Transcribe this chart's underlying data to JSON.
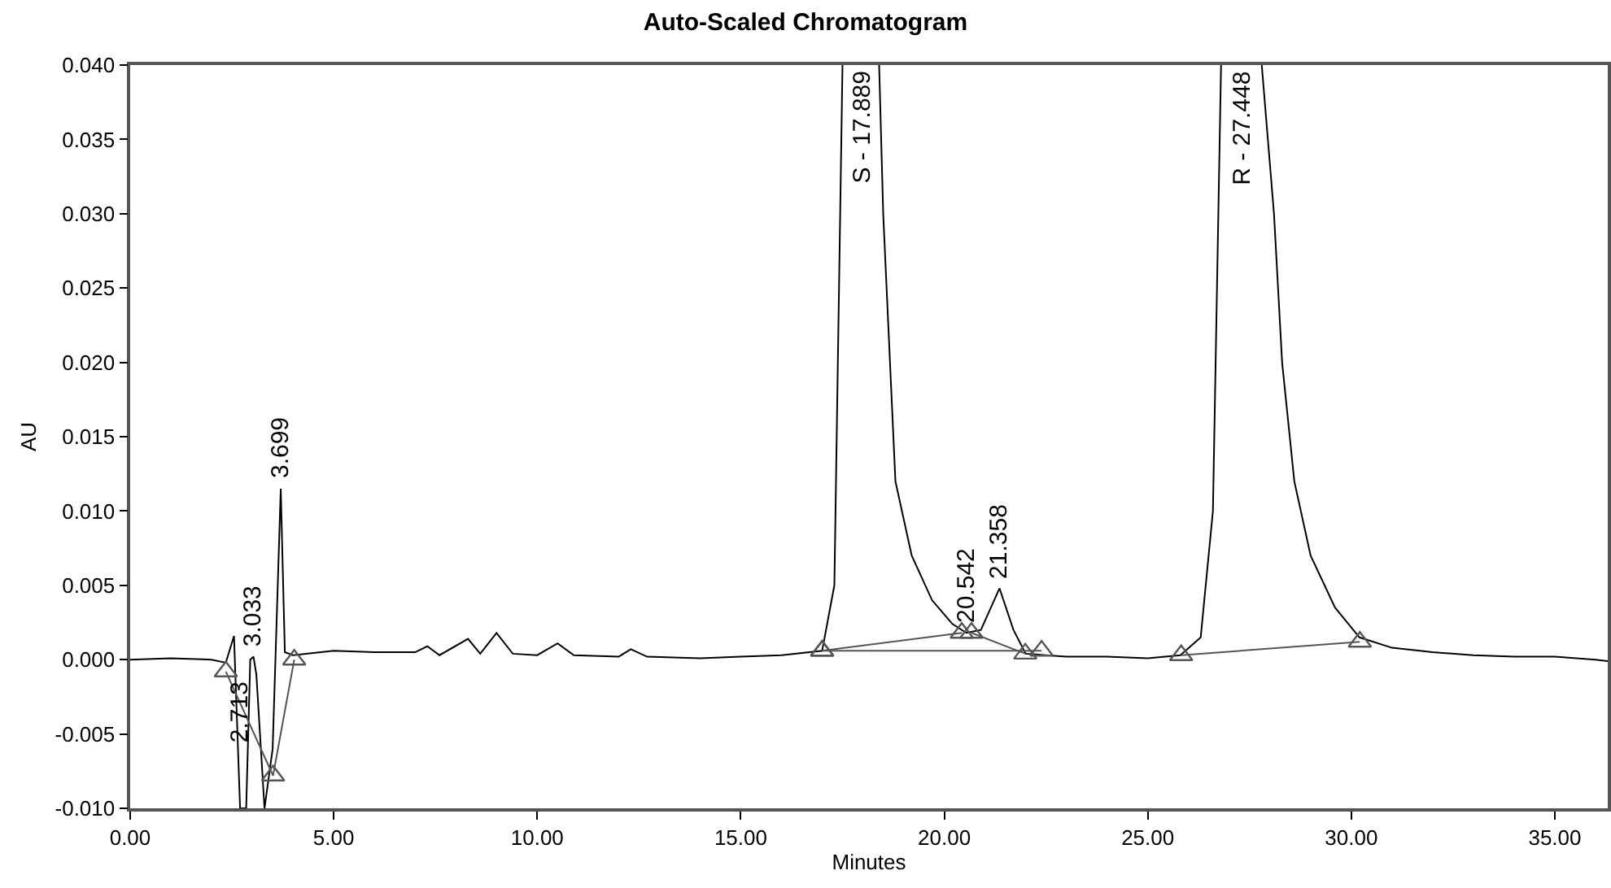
{
  "chart_data": {
    "type": "line",
    "title": "Auto-Scaled Chromatogram",
    "xlabel": "Minutes",
    "ylabel": "AU",
    "xlim": [
      0,
      36.3
    ],
    "ylim": [
      -0.01,
      0.04
    ],
    "xticks": [
      {
        "value": 0,
        "label": "0.00"
      },
      {
        "value": 5,
        "label": "5.00"
      },
      {
        "value": 10,
        "label": "10.00"
      },
      {
        "value": 15,
        "label": "15.00"
      },
      {
        "value": 20,
        "label": "20.00"
      },
      {
        "value": 25,
        "label": "25.00"
      },
      {
        "value": 30,
        "label": "30.00"
      },
      {
        "value": 35,
        "label": "35.00"
      }
    ],
    "yticks": [
      {
        "value": -0.01,
        "label": "-0.010"
      },
      {
        "value": -0.005,
        "label": "-0.005"
      },
      {
        "value": 0,
        "label": "0.000"
      },
      {
        "value": 0.005,
        "label": "0.005"
      },
      {
        "value": 0.01,
        "label": "0.010"
      },
      {
        "value": 0.015,
        "label": "0.015"
      },
      {
        "value": 0.02,
        "label": "0.020"
      },
      {
        "value": 0.025,
        "label": "0.025"
      },
      {
        "value": 0.03,
        "label": "0.030"
      },
      {
        "value": 0.035,
        "label": "0.035"
      },
      {
        "value": 0.04,
        "label": "0.040"
      }
    ],
    "series": [
      {
        "color": "#000000",
        "x": [
          0,
          1,
          2,
          2.35,
          2.55,
          2.7,
          2.85,
          2.95,
          3.03,
          3.1,
          3.3,
          3.5,
          3.699,
          3.8,
          4,
          5,
          6,
          7,
          7.3,
          7.6,
          8.3,
          8.6,
          9,
          9.4,
          10,
          10.5,
          10.9,
          12,
          12.3,
          12.7,
          14,
          15,
          16,
          17,
          17.3,
          17.5,
          null,
          18.4,
          18.5,
          18.8,
          19.2,
          19.7,
          20.2,
          20.542,
          20.9,
          21.358,
          21.7,
          22,
          22.5,
          23,
          24,
          25,
          25.8,
          26.3,
          26.6,
          26.8,
          null,
          27.8,
          28.1,
          28.3,
          28.6,
          29,
          29.6,
          30.2,
          31,
          32,
          33,
          34,
          35,
          36,
          36.3
        ],
        "values": [
          0,
          0.0001,
          0,
          -0.0002,
          0.0016,
          -0.01,
          -0.01,
          0,
          0.0002,
          -0.001,
          -0.01,
          -0.006,
          0.0115,
          0.0005,
          0.0003,
          0.0006,
          0.0005,
          0.0005,
          0.0009,
          0.0003,
          0.0014,
          0.0004,
          0.0018,
          0.0004,
          0.0003,
          0.0011,
          0.0003,
          0.0002,
          0.0007,
          0.0002,
          0.0001,
          0.0002,
          0.0003,
          0.0006,
          0.005,
          0.04,
          null,
          0.04,
          0.03,
          0.012,
          0.007,
          0.004,
          0.0024,
          0.0018,
          0.002,
          0.0048,
          0.002,
          0.0004,
          0.0003,
          0.0002,
          0.0002,
          0.0001,
          0.0003,
          0.0015,
          0.01,
          0.04,
          null,
          0.04,
          0.03,
          0.02,
          0.012,
          0.007,
          0.0035,
          0.0015,
          0.0008,
          0.0005,
          0.0003,
          0.0002,
          0.0002,
          0,
          -0.0001
        ]
      },
      {
        "color": "#555555",
        "marker": "triangle",
        "x": [
          2.35,
          3.51,
          4.03,
          null,
          17,
          20.43,
          null,
          17,
          22.39,
          null,
          20.67,
          21.99,
          null,
          25.82,
          30.21
        ],
        "values": [
          -0.0008,
          -0.0078,
          0,
          null,
          0.0006,
          0.0018,
          null,
          0.0006,
          0.0006,
          null,
          0.0018,
          0.0004,
          null,
          0.0003,
          0.0012
        ]
      }
    ],
    "annotations": [
      {
        "text": "2.713",
        "x": 2.713,
        "y": -0.001
      },
      {
        "text": "3.033",
        "x": 3.033,
        "y": 0.0002
      },
      {
        "text": "3.699",
        "x": 3.699,
        "y": 0.0115
      },
      {
        "text": "S - 17.889",
        "x": 17.5,
        "y": 0.04
      },
      {
        "text": "20.542",
        "x": 20.542,
        "y": 0.0018
      },
      {
        "text": "21.358",
        "x": 21.358,
        "y": 0.0048
      },
      {
        "text": "R - 27.448",
        "x": 26.8,
        "y": 0.04
      }
    ]
  }
}
